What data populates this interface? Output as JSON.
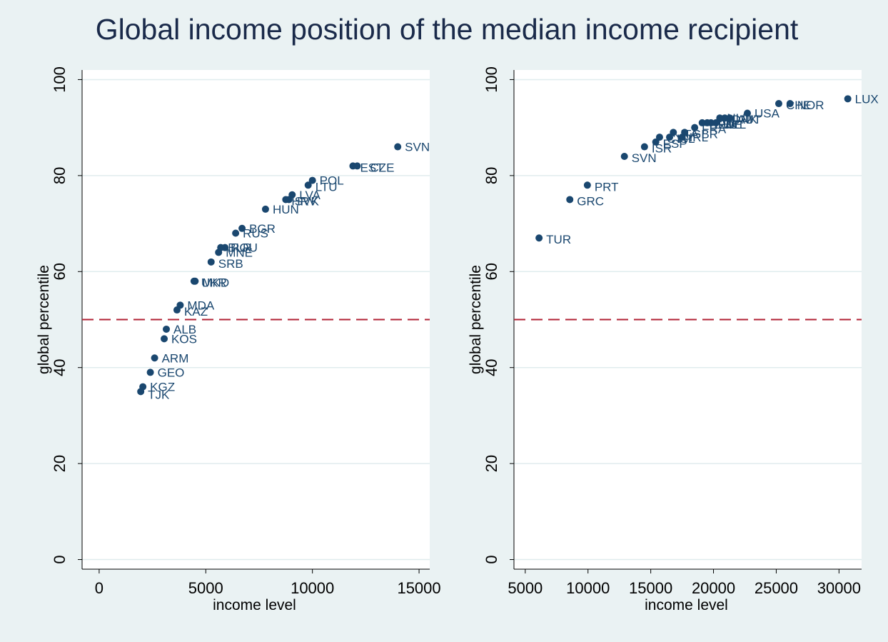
{
  "title": "Global income position of the median income recipient",
  "colors": {
    "background": "#eaf2f3",
    "plot_background": "#ffffff",
    "marker": "#1a476f",
    "reference_line": "#b22234",
    "grid": "#e0ecee"
  },
  "chart_data": [
    {
      "type": "scatter",
      "xlabel": "income level",
      "ylabel": "global percentile",
      "xlim": [
        -800,
        15500
      ],
      "ylim": [
        -2,
        102
      ],
      "xticks": [
        0,
        5000,
        10000,
        15000
      ],
      "yticks": [
        0,
        20,
        40,
        60,
        80,
        100
      ],
      "reference_line_y": 50,
      "grid": true,
      "points": [
        {
          "label": "SVN",
          "x": 14000,
          "y": 86
        },
        {
          "label": "EST",
          "x": 11900,
          "y": 82
        },
        {
          "label": "CZE",
          "x": 12100,
          "y": 82
        },
        {
          "label": "POL",
          "x": 10000,
          "y": 79
        },
        {
          "label": "LTU",
          "x": 9800,
          "y": 78
        },
        {
          "label": "LVA",
          "x": 9050,
          "y": 76
        },
        {
          "label": "HRV",
          "x": 8750,
          "y": 75
        },
        {
          "label": "SVK",
          "x": 8900,
          "y": 75
        },
        {
          "label": "HUN",
          "x": 7800,
          "y": 73
        },
        {
          "label": "BGR",
          "x": 6700,
          "y": 69
        },
        {
          "label": "RUS",
          "x": 6400,
          "y": 68
        },
        {
          "label": "ROU",
          "x": 5900,
          "y": 65
        },
        {
          "label": "BLR",
          "x": 5700,
          "y": 65
        },
        {
          "label": "MNE",
          "x": 5600,
          "y": 64
        },
        {
          "label": "SRB",
          "x": 5250,
          "y": 62
        },
        {
          "label": "UKR",
          "x": 4450,
          "y": 58
        },
        {
          "label": "MKD",
          "x": 4500,
          "y": 58
        },
        {
          "label": "MDA",
          "x": 3800,
          "y": 53
        },
        {
          "label": "KAZ",
          "x": 3650,
          "y": 52
        },
        {
          "label": "ALB",
          "x": 3150,
          "y": 48
        },
        {
          "label": "KOS",
          "x": 3050,
          "y": 46
        },
        {
          "label": "ARM",
          "x": 2600,
          "y": 42
        },
        {
          "label": "GEO",
          "x": 2400,
          "y": 39
        },
        {
          "label": "KGZ",
          "x": 2050,
          "y": 36
        },
        {
          "label": "TJK",
          "x": 1950,
          "y": 35
        }
      ]
    },
    {
      "type": "scatter",
      "xlabel": "income level",
      "ylabel": "global percentile",
      "xlim": [
        4100,
        31800
      ],
      "ylim": [
        -2,
        102
      ],
      "xticks": [
        5000,
        10000,
        15000,
        20000,
        25000,
        30000
      ],
      "yticks": [
        0,
        20,
        40,
        60,
        80,
        100
      ],
      "reference_line_y": 50,
      "grid": true,
      "points": [
        {
          "label": "LUX",
          "x": 30700,
          "y": 96
        },
        {
          "label": "CHE",
          "x": 25200,
          "y": 95
        },
        {
          "label": "NOR",
          "x": 26100,
          "y": 95
        },
        {
          "label": "USA",
          "x": 22700,
          "y": 93
        },
        {
          "label": "AUT",
          "x": 21300,
          "y": 92
        },
        {
          "label": "DNK",
          "x": 20900,
          "y": 92
        },
        {
          "label": "NLD",
          "x": 20500,
          "y": 92
        },
        {
          "label": "BEL",
          "x": 20200,
          "y": 91
        },
        {
          "label": "FIN",
          "x": 19800,
          "y": 91
        },
        {
          "label": "SWE",
          "x": 19500,
          "y": 91
        },
        {
          "label": "DEU",
          "x": 19100,
          "y": 91
        },
        {
          "label": "FRA",
          "x": 18500,
          "y": 90
        },
        {
          "label": "GBR",
          "x": 17700,
          "y": 89
        },
        {
          "label": "IRL",
          "x": 17500,
          "y": 88
        },
        {
          "label": "ITA",
          "x": 16800,
          "y": 89
        },
        {
          "label": "ISL",
          "x": 16500,
          "y": 88
        },
        {
          "label": "CYP",
          "x": 15700,
          "y": 88
        },
        {
          "label": "ESP",
          "x": 15400,
          "y": 87
        },
        {
          "label": "ISR",
          "x": 14500,
          "y": 86
        },
        {
          "label": "SVN",
          "x": 12900,
          "y": 84
        },
        {
          "label": "PRT",
          "x": 9950,
          "y": 78
        },
        {
          "label": "GRC",
          "x": 8550,
          "y": 75
        },
        {
          "label": "TUR",
          "x": 6100,
          "y": 67
        }
      ]
    }
  ]
}
